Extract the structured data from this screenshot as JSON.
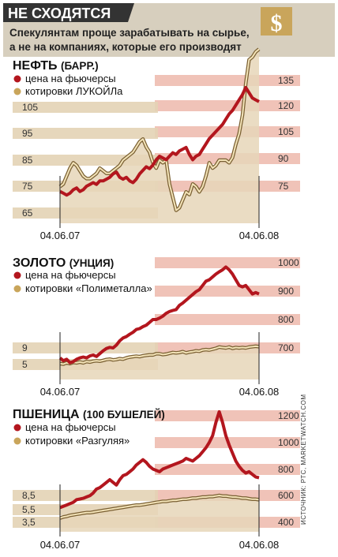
{
  "header": {
    "title": "НЕ СХОДЯТСЯ",
    "subtitle_line1": "Спекулянтам проще зарабатывать на сырье,",
    "subtitle_line2": "а не на компаниях, которые его производят",
    "icon": "dollar-icon"
  },
  "source": "ИСТОЧНИК: РТС, MARKETWATCH.COM",
  "colors": {
    "futures": "#b3161e",
    "stock": "#c9a55b",
    "stock_fill": "#e6d6b8",
    "band_left": "#e3d3b5",
    "band_right": "#edb9ab",
    "header_bg": "#d7cfbe",
    "header_dark": "#333333"
  },
  "chart_data": [
    {
      "type": "line",
      "title": "НЕФТЬ",
      "title_unit": "(БАРР.)",
      "x_start": "04.06.07",
      "x_end": "04.06.08",
      "series": [
        {
          "name": "цена на фьючерсы",
          "axis": "right",
          "values": [
            72,
            71,
            70,
            71,
            73,
            74,
            72,
            73,
            75,
            76,
            77,
            76,
            78,
            78,
            79,
            80,
            82,
            83,
            80,
            79,
            80,
            78,
            77,
            79,
            82,
            84,
            86,
            85,
            87,
            90,
            92,
            91,
            90,
            92,
            94,
            93,
            95,
            96,
            97,
            93,
            90,
            92,
            93,
            96,
            99,
            102,
            104,
            106,
            108,
            110,
            113,
            116,
            118,
            121,
            124,
            127,
            131,
            128,
            125,
            124,
            123
          ]
        },
        {
          "name": "котировки ЛУКОЙЛа",
          "axis": "left",
          "values": [
            75,
            76,
            79,
            82,
            84,
            83,
            81,
            79,
            78,
            78,
            79,
            80,
            82,
            81,
            80,
            80,
            81,
            82,
            83,
            85,
            86,
            87,
            88,
            90,
            92,
            93,
            90,
            88,
            84,
            82,
            85,
            84,
            85,
            76,
            71,
            66,
            67,
            70,
            73,
            72,
            76,
            75,
            73,
            75,
            79,
            84,
            82,
            83,
            85,
            85,
            85,
            84,
            86,
            91,
            95,
            102,
            114,
            123,
            124,
            126,
            127
          ]
        }
      ],
      "left_ticks": [
        "65",
        "75",
        "85",
        "95",
        "105"
      ],
      "right_ticks": [
        "75",
        "90",
        "105",
        "120",
        "135"
      ]
    },
    {
      "type": "line",
      "title": "ЗОЛОТО",
      "title_unit": "(УНЦИЯ)",
      "x_start": "04.06.07",
      "x_end": "04.06.08",
      "series": [
        {
          "name": "цена на фьючерсы",
          "axis": "right",
          "values": [
            665,
            655,
            660,
            648,
            652,
            660,
            665,
            668,
            665,
            672,
            675,
            670,
            680,
            690,
            698,
            702,
            700,
            710,
            725,
            735,
            740,
            748,
            755,
            765,
            768,
            775,
            780,
            790,
            800,
            800,
            805,
            812,
            822,
            828,
            832,
            835,
            850,
            858,
            868,
            878,
            888,
            898,
            905,
            920,
            935,
            940,
            950,
            960,
            968,
            975,
            985,
            975,
            960,
            940,
            920,
            915,
            920,
            905,
            890,
            895,
            890
          ]
        },
        {
          "name": "котировки «Полиметалла»",
          "axis": "left",
          "values": [
            5.2,
            5.1,
            5.4,
            5.2,
            5.5,
            5.4,
            5.6,
            5.4,
            5.7,
            5.6,
            5.8,
            5.9,
            5.8,
            6.0,
            6.2,
            6.3,
            6.1,
            6.2,
            6.4,
            6.3,
            6.6,
            6.8,
            6.9,
            7.0,
            6.9,
            7.1,
            7.2,
            7.3,
            7.3,
            7.6,
            7.6,
            7.4,
            7.5,
            7.7,
            7.9,
            7.8,
            7.9,
            8.1,
            7.8,
            8.0,
            8.1,
            8.3,
            8.2,
            8.5,
            8.6,
            8.5,
            8.7,
            8.9,
            9.2,
            9.1,
            9.0,
            9.2,
            8.9,
            9.1,
            9.0,
            9.1,
            9.0,
            9.2,
            9.3,
            9.4,
            9.3
          ]
        }
      ],
      "left_ticks": [
        "5",
        "9"
      ],
      "right_ticks": [
        "700",
        "800",
        "900",
        "1000"
      ]
    },
    {
      "type": "line",
      "title": "ПШЕНИЦА",
      "title_unit": "(100 БУШЕЛЕЙ)",
      "x_start": "04.06.07",
      "x_end": "04.06.08",
      "series": [
        {
          "name": "цена на фьючерсы",
          "axis": "right",
          "values": [
            510,
            520,
            530,
            540,
            550,
            570,
            575,
            580,
            590,
            600,
            620,
            650,
            660,
            680,
            700,
            720,
            700,
            680,
            720,
            750,
            760,
            780,
            800,
            830,
            850,
            870,
            850,
            820,
            800,
            790,
            780,
            800,
            810,
            820,
            830,
            840,
            850,
            860,
            880,
            870,
            860,
            880,
            900,
            930,
            960,
            1000,
            1050,
            1150,
            1230,
            1150,
            1050,
            980,
            920,
            860,
            820,
            790,
            770,
            780,
            760,
            740,
            735
          ]
        },
        {
          "name": "котировки «Разгуляя»",
          "axis": "left",
          "values": [
            4.3,
            4.5,
            4.6,
            4.8,
            4.9,
            5.0,
            5.1,
            5.2,
            5.3,
            5.3,
            5.4,
            5.5,
            5.6,
            5.7,
            5.8,
            5.9,
            6.0,
            6.1,
            6.2,
            6.3,
            6.4,
            6.5,
            6.6,
            6.7,
            6.7,
            6.8,
            6.9,
            7.0,
            7.1,
            7.2,
            7.3,
            7.4,
            7.4,
            7.5,
            7.6,
            7.6,
            7.7,
            7.8,
            7.8,
            7.9,
            8.0,
            8.0,
            8.1,
            8.2,
            8.2,
            8.3,
            8.3,
            8.4,
            8.5,
            8.4,
            8.4,
            8.3,
            8.2,
            8.2,
            8.1,
            8.0,
            8.0,
            7.9,
            7.8,
            7.8,
            7.7
          ]
        }
      ],
      "left_ticks": [
        "3,5",
        "5,5",
        "8,5"
      ],
      "right_ticks": [
        "400",
        "600",
        "800",
        "1000",
        "1200"
      ]
    }
  ]
}
